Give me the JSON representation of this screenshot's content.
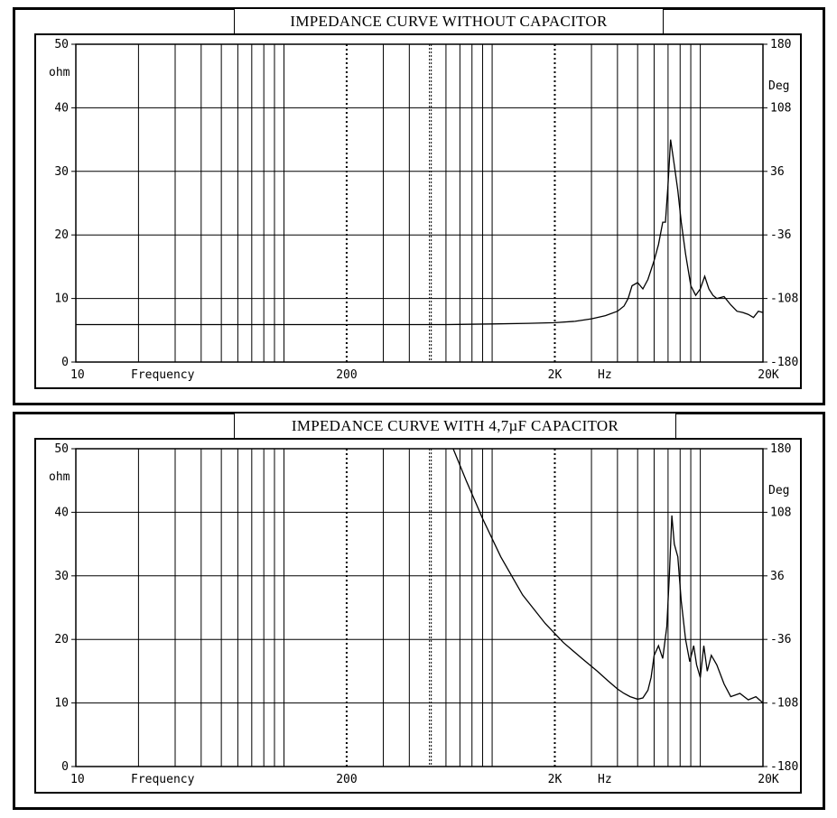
{
  "chart_data": [
    {
      "type": "line",
      "title": "IMPEDANCE CURVE WITHOUT  CAPACITOR",
      "xlabel": "Frequency",
      "xunit": "Hz",
      "xscale": "log",
      "xlim": [
        10,
        20000
      ],
      "x_tick_labels": [
        "10",
        "200",
        "2K",
        "20K"
      ],
      "x_tick_values": [
        10,
        200,
        2000,
        20000
      ],
      "ylabel": "ohm",
      "ylim": [
        0,
        50
      ],
      "y_tick_labels": [
        "0",
        "10",
        "20",
        "30",
        "40",
        "50"
      ],
      "y2label": "Deg",
      "y2lim": [
        -180,
        180
      ],
      "y2_tick_labels": [
        "-180",
        "-108",
        "-36",
        "36",
        "108",
        "180"
      ],
      "grid": true,
      "series": [
        {
          "x": [
            10,
            30,
            100,
            300,
            600,
            1000,
            1500,
            2000,
            2500,
            3000,
            3500,
            4000,
            4300,
            4500,
            4700,
            5000,
            5300,
            5600,
            6000,
            6300,
            6600,
            6800,
            7000,
            7200,
            7500,
            7800,
            8100,
            8500,
            9000,
            9500,
            10000,
            10500,
            11000,
            11500,
            12000,
            13000,
            14000,
            15000,
            16000,
            17000,
            18000,
            19000,
            20000
          ],
          "values": [
            5.9,
            5.9,
            5.9,
            5.9,
            5.9,
            6.0,
            6.1,
            6.2,
            6.4,
            6.8,
            7.3,
            8.0,
            8.8,
            10.0,
            12.0,
            12.5,
            11.5,
            13.0,
            16.0,
            18.5,
            22.0,
            22.0,
            28.0,
            35.0,
            31.0,
            27.0,
            22.0,
            17.0,
            12.0,
            10.5,
            11.5,
            13.5,
            11.5,
            10.5,
            10.0,
            10.3,
            9.0,
            8.0,
            7.8,
            7.5,
            7.0,
            8.0,
            7.8
          ]
        }
      ]
    },
    {
      "type": "line",
      "title": "IMPEDANCE CURVE WITH 4,7µF CAPACITOR",
      "xlabel": "Frequency",
      "xunit": "Hz",
      "xscale": "log",
      "xlim": [
        10,
        20000
      ],
      "x_tick_labels": [
        "10",
        "200",
        "2K",
        "20K"
      ],
      "x_tick_values": [
        10,
        200,
        2000,
        20000
      ],
      "ylabel": "ohm",
      "ylim": [
        0,
        50
      ],
      "y_tick_labels": [
        "0",
        "10",
        "20",
        "30",
        "40",
        "50"
      ],
      "y2label": "Deg",
      "y2lim": [
        -180,
        180
      ],
      "y2_tick_labels": [
        "-180",
        "-108",
        "-36",
        "36",
        "108",
        "180"
      ],
      "grid": true,
      "series": [
        {
          "x": [
            650,
            750,
            900,
            1100,
            1400,
            1800,
            2200,
            2700,
            3200,
            3600,
            4000,
            4300,
            4600,
            5000,
            5300,
            5600,
            5800,
            6000,
            6300,
            6600,
            6900,
            7100,
            7300,
            7500,
            7800,
            8100,
            8500,
            8900,
            9300,
            9600,
            10000,
            10400,
            10800,
            11300,
            12000,
            13000,
            14000,
            15500,
            17000,
            18500,
            20000
          ],
          "values": [
            50,
            45,
            39,
            33,
            27,
            22.5,
            19.5,
            17,
            15,
            13.5,
            12.2,
            11.5,
            11.0,
            10.6,
            10.8,
            12.0,
            14.0,
            17.5,
            19.0,
            17.0,
            22.0,
            30.0,
            39.5,
            35.0,
            33.0,
            26.0,
            20.0,
            16.5,
            19.0,
            16.0,
            14.0,
            19.0,
            15.0,
            17.5,
            16.0,
            13.0,
            11.0,
            11.5,
            10.5,
            11.0,
            10.0
          ]
        }
      ]
    }
  ]
}
